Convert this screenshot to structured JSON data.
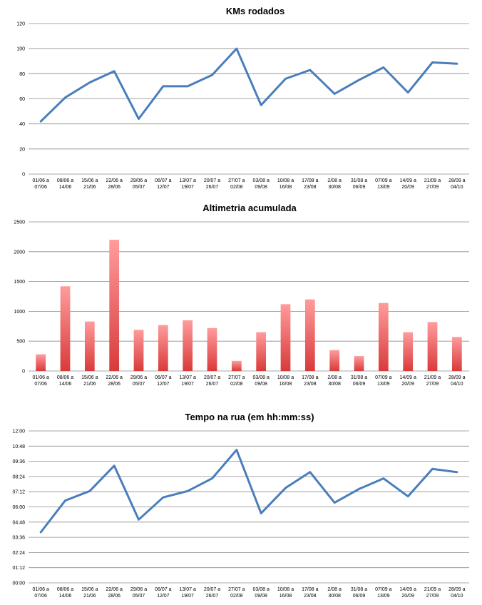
{
  "chart_data": [
    {
      "type": "line",
      "title": "KMs rodados",
      "categories": [
        [
          "01/06 a",
          "07/06"
        ],
        [
          "08/06 a",
          "14/06"
        ],
        [
          "15/06 a",
          "21/06"
        ],
        [
          "22/06 a",
          "28/06"
        ],
        [
          "29/06 a",
          "05/07"
        ],
        [
          "06/07 a",
          "12/07"
        ],
        [
          "13/07 a",
          "19/07"
        ],
        [
          "20/07 a",
          "26/07"
        ],
        [
          "27/07 a",
          "02/08"
        ],
        [
          "03/08 a",
          "09/08"
        ],
        [
          "10/08 a",
          "16/08"
        ],
        [
          "17/08 a",
          "23/08"
        ],
        [
          "2/08 a",
          "30/08"
        ],
        [
          "31/08 a",
          "06/09"
        ],
        [
          "07/09 a",
          "13/09"
        ],
        [
          "14/09 a",
          "20/09"
        ],
        [
          "21/09 a",
          "27/09"
        ],
        [
          "28/09 a",
          "04/10"
        ]
      ],
      "values": [
        42,
        61,
        73,
        82,
        44,
        70,
        70,
        79,
        100,
        55,
        76,
        83,
        64,
        75,
        85,
        65,
        89,
        88
      ],
      "yticks": [
        0,
        20,
        40,
        60,
        80,
        100,
        120
      ],
      "ytick_labels": [
        "0",
        "20",
        "40",
        "60",
        "80",
        "100",
        "120"
      ],
      "ylim": [
        0,
        120
      ],
      "color": "#4a7ebb",
      "grid": true
    },
    {
      "type": "bar",
      "title": "Altimetria acumulada",
      "categories": [
        [
          "01/06 a",
          "07/06"
        ],
        [
          "08/06 a",
          "14/06"
        ],
        [
          "15/06 a",
          "21/06"
        ],
        [
          "22/06 a",
          "28/06"
        ],
        [
          "29/06 a",
          "05/07"
        ],
        [
          "06/07 a",
          "12/07"
        ],
        [
          "13/07 a",
          "19/07"
        ],
        [
          "20/07 a",
          "26/07"
        ],
        [
          "27/07 a",
          "02/08"
        ],
        [
          "03/08 a",
          "09/08"
        ],
        [
          "10/08 a",
          "16/08"
        ],
        [
          "17/08 a",
          "23/08"
        ],
        [
          "2/08 a",
          "30/08"
        ],
        [
          "31/08 a",
          "06/09"
        ],
        [
          "07/09 a",
          "13/09"
        ],
        [
          "14/09 a",
          "20/09"
        ],
        [
          "21/09 a",
          "27/09"
        ],
        [
          "28/09 a",
          "04/10"
        ]
      ],
      "values": [
        280,
        1420,
        830,
        2200,
        690,
        770,
        850,
        720,
        170,
        650,
        1120,
        1200,
        350,
        250,
        1140,
        650,
        820,
        570
      ],
      "yticks": [
        0,
        500,
        1000,
        1500,
        2000,
        2500
      ],
      "ytick_labels": [
        "0",
        "500",
        "1000",
        "1500",
        "2000",
        "2500"
      ],
      "ylim": [
        0,
        2500
      ],
      "color_top": "#ff9c9c",
      "color_bottom": "#d93a3a",
      "grid": true
    },
    {
      "type": "line",
      "title": "Tempo na rua (em hh:mm:ss)",
      "categories": [
        [
          "01/06 a",
          "07/06"
        ],
        [
          "08/06 a",
          "14/06"
        ],
        [
          "15/06 a",
          "21/06"
        ],
        [
          "22/06 a",
          "28/06"
        ],
        [
          "29/06 a",
          "05/07"
        ],
        [
          "06/07 a",
          "12/07"
        ],
        [
          "13/07 a",
          "19/07"
        ],
        [
          "20/07 a",
          "26/07"
        ],
        [
          "27/07 a",
          "02/08"
        ],
        [
          "03/08 a",
          "09/08"
        ],
        [
          "10/08 a",
          "16/08"
        ],
        [
          "17/08 a",
          "23/08"
        ],
        [
          "2/08 a",
          "30/08"
        ],
        [
          "31/08 a",
          "06/09"
        ],
        [
          "07/09 a",
          "13/09"
        ],
        [
          "14/09 a",
          "20/09"
        ],
        [
          "21/09 a",
          "27/09"
        ],
        [
          "28/09 a",
          "04/10"
        ]
      ],
      "values_minutes": [
        240,
        390,
        435,
        555,
        300,
        405,
        435,
        495,
        630,
        330,
        450,
        525,
        380,
        445,
        495,
        410,
        540,
        525
      ],
      "yticks": [
        0,
        72,
        144,
        216,
        288,
        360,
        432,
        504,
        576,
        648,
        720
      ],
      "ytick_labels": [
        "00:00",
        "01:12",
        "02:24",
        "03:36",
        "04:48",
        "06:00",
        "07:12",
        "08:24",
        "09:36",
        "10:48",
        "12:00"
      ],
      "ylim": [
        0,
        720
      ],
      "color": "#4a7ebb",
      "grid": true
    }
  ]
}
